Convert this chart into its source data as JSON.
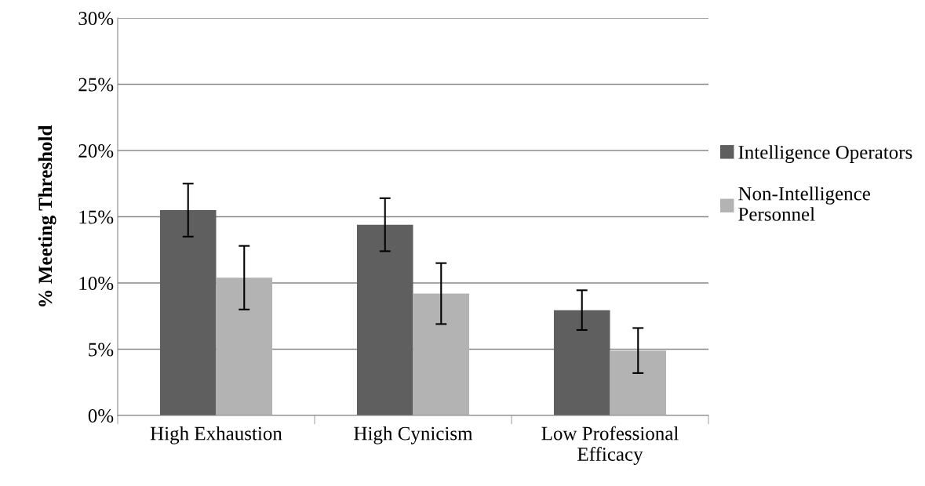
{
  "chart_data": {
    "type": "bar",
    "ylabel": "% Meeting Threshold",
    "categories": [
      "High Exhaustion",
      "High Cynicism",
      "Low Professional\nEfficacy"
    ],
    "series": [
      {
        "name": "Intelligence Operators",
        "color": "#5f5f5f",
        "values": [
          15.5,
          14.4,
          7.95
        ],
        "errors": [
          2.0,
          2.0,
          1.5
        ]
      },
      {
        "name": "Non-Intelligence\nPersonnel",
        "color": "#b3b3b3",
        "values": [
          10.4,
          9.2,
          4.9
        ],
        "errors": [
          2.4,
          2.3,
          1.7
        ]
      }
    ],
    "ylim": [
      0,
      30
    ],
    "yticks": [
      {
        "value": 0,
        "label": "0%"
      },
      {
        "value": 5,
        "label": "5%"
      },
      {
        "value": 10,
        "label": "10%"
      },
      {
        "value": 15,
        "label": "15%"
      },
      {
        "value": 20,
        "label": "20%"
      },
      {
        "value": 25,
        "label": "25%"
      },
      {
        "value": 30,
        "label": "30%"
      }
    ],
    "grid": "y",
    "legend": "right"
  }
}
